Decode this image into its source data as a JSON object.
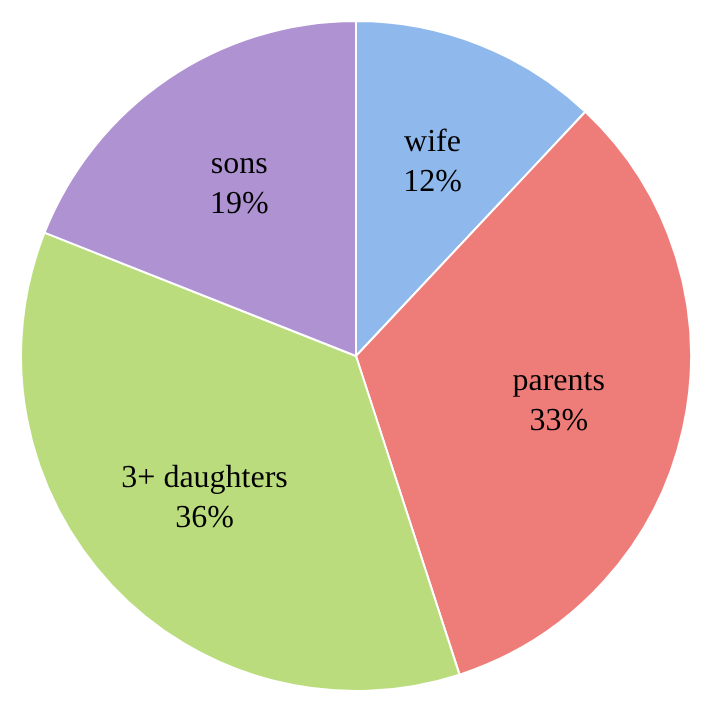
{
  "chart_data": {
    "type": "pie",
    "categories": [
      "wife",
      "parents",
      "3+ daughters",
      "sons"
    ],
    "values": [
      12,
      33,
      36,
      19
    ],
    "colors": [
      "#8fb8ec",
      "#ee7c78",
      "#badc7c",
      "#ae92d2"
    ],
    "value_labels": [
      "12%",
      "33%",
      "36%",
      "19%"
    ],
    "legend": false
  }
}
